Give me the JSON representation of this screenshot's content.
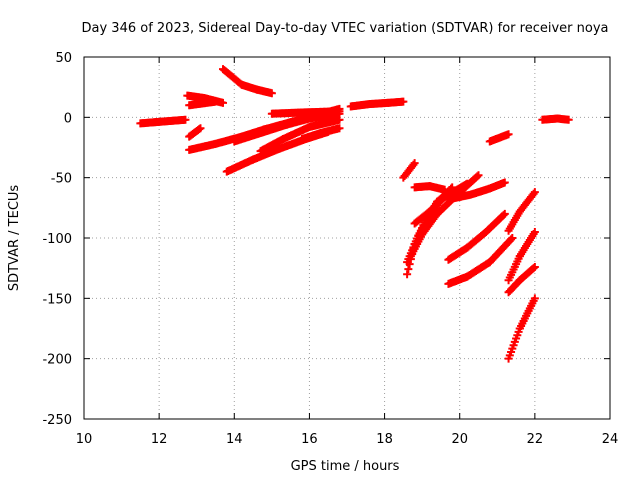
{
  "chart_data": {
    "type": "scatter",
    "title": "Day 346 of 2023, Sidereal Day-to-day VTEC variation (SDTVAR) for receiver noya",
    "xlabel": "GPS time / hours",
    "ylabel": "SDTVAR / TECUs",
    "xlim": [
      10,
      24
    ],
    "ylim": [
      -250,
      50
    ],
    "xticks": [
      10,
      12,
      14,
      16,
      18,
      20,
      22,
      24
    ],
    "yticks": [
      50,
      0,
      -50,
      -100,
      -150,
      -200,
      -250
    ],
    "grid": true,
    "marker": "+",
    "color": "#ff0000",
    "tracks": [
      {
        "x": [
          11.5,
          11.9,
          12.3,
          12.7
        ],
        "y": [
          -5,
          -4,
          -3,
          -2
        ]
      },
      {
        "x": [
          12.75,
          13.2,
          13.7
        ],
        "y": [
          18,
          16,
          12
        ]
      },
      {
        "x": [
          12.8,
          13.5
        ],
        "y": [
          10,
          13
        ]
      },
      {
        "x": [
          12.8,
          13.1
        ],
        "y": [
          -16,
          -9
        ]
      },
      {
        "x": [
          13.7,
          14.2,
          14.6,
          15.0
        ],
        "y": [
          40,
          27,
          23,
          20
        ]
      },
      {
        "x": [
          12.8,
          13.5,
          14.2,
          14.8,
          15.5,
          16.2,
          16.8
        ],
        "y": [
          -27,
          -22,
          -16,
          -10,
          -4,
          2,
          7
        ]
      },
      {
        "x": [
          13.8,
          14.5,
          15.2,
          15.9,
          16.5
        ],
        "y": [
          -45,
          -35,
          -26,
          -18,
          -12
        ]
      },
      {
        "x": [
          14.0,
          14.7,
          15.4,
          16.0,
          16.8
        ],
        "y": [
          -20,
          -13,
          -6,
          -1,
          3
        ]
      },
      {
        "x": [
          14.7,
          15.3,
          16.0,
          16.8
        ],
        "y": [
          -28,
          -18,
          -8,
          -2
        ]
      },
      {
        "x": [
          15.0,
          15.8,
          16.8
        ],
        "y": [
          3,
          4,
          5
        ]
      },
      {
        "x": [
          15.8,
          16.3,
          16.8
        ],
        "y": [
          -18,
          -13,
          -9
        ]
      },
      {
        "x": [
          17.1,
          17.6,
          18.1,
          18.5
        ],
        "y": [
          9,
          11,
          12,
          13
        ]
      },
      {
        "x": [
          18.5,
          18.8
        ],
        "y": [
          -50,
          -38
        ]
      },
      {
        "x": [
          18.6,
          18.8,
          19.1,
          19.4,
          19.7
        ],
        "y": [
          -130,
          -105,
          -85,
          -70,
          -62
        ]
      },
      {
        "x": [
          18.6,
          18.9,
          19.2,
          19.5,
          19.8
        ],
        "y": [
          -120,
          -98,
          -82,
          -68,
          -58
        ]
      },
      {
        "x": [
          18.7,
          19.0,
          19.4,
          19.9,
          20.5
        ],
        "y": [
          -115,
          -97,
          -80,
          -65,
          -48
        ]
      },
      {
        "x": [
          18.8,
          19.2,
          19.6,
          20.2
        ],
        "y": [
          -88,
          -78,
          -66,
          -55
        ]
      },
      {
        "x": [
          18.8,
          19.2,
          19.6
        ],
        "y": [
          -58,
          -57,
          -60
        ]
      },
      {
        "x": [
          19.7,
          20.3,
          20.8,
          21.2
        ],
        "y": [
          -68,
          -64,
          -59,
          -54
        ]
      },
      {
        "x": [
          19.7,
          20.2,
          20.7,
          21.2
        ],
        "y": [
          -118,
          -108,
          -95,
          -80
        ]
      },
      {
        "x": [
          19.7,
          20.2,
          20.8,
          21.4
        ],
        "y": [
          -138,
          -132,
          -120,
          -100
        ]
      },
      {
        "x": [
          20.8,
          21.3
        ],
        "y": [
          -20,
          -14
        ]
      },
      {
        "x": [
          21.3,
          21.6,
          22.0
        ],
        "y": [
          -94,
          -78,
          -62
        ]
      },
      {
        "x": [
          21.3,
          21.6,
          22.0
        ],
        "y": [
          -145,
          -135,
          -124
        ]
      },
      {
        "x": [
          21.3,
          21.6,
          22.0
        ],
        "y": [
          -135,
          -115,
          -95
        ]
      },
      {
        "x": [
          21.3,
          21.6,
          22.0
        ],
        "y": [
          -200,
          -175,
          -150
        ]
      },
      {
        "x": [
          22.2,
          22.6,
          22.9
        ],
        "y": [
          -2,
          -1,
          -2
        ]
      }
    ]
  }
}
